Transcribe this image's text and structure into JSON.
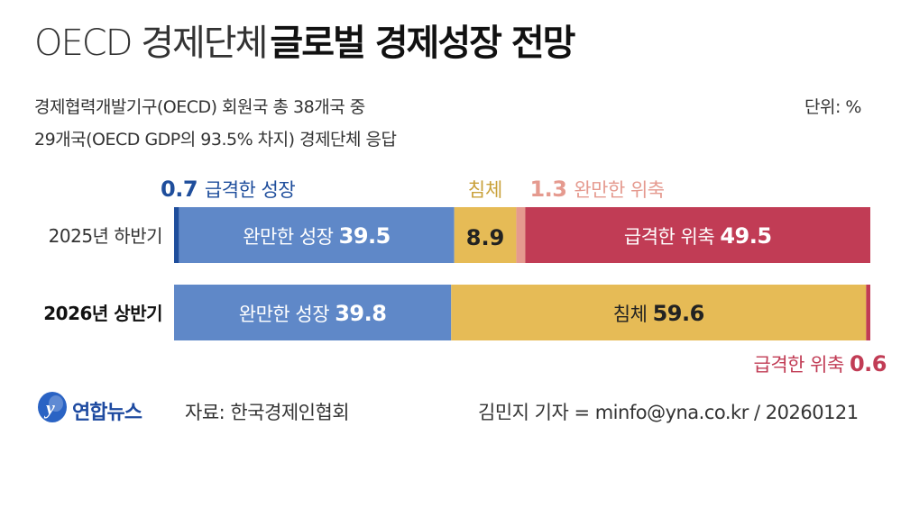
{
  "header": {
    "title_light": "OECD 경제단체",
    "title_bold": "글로벌 경제성장 전망",
    "subtitle_line1": "경제협력개발기구(OECD) 회원국 총 38개국 중",
    "subtitle_line2": "29개국(OECD GDP의 93.5% 차지) 경제단체 응답",
    "unit": "단위: %"
  },
  "colors": {
    "sharp_growth": "#1f4e9c",
    "mild_growth": "#5f88c8",
    "stagnation": "#e6bb56",
    "mild_contraction": "#e59a8f",
    "sharp_contraction": "#c13c55"
  },
  "chart_data": {
    "type": "bar",
    "orientation": "horizontal-stacked-100",
    "unit": "%",
    "categories": [
      "2025년 하반기",
      "2026년 상반기"
    ],
    "series": [
      {
        "name": "급격한 성장",
        "values": [
          0.7,
          0
        ],
        "color": "#1f4e9c"
      },
      {
        "name": "완만한 성장",
        "values": [
          39.5,
          39.8
        ],
        "color": "#5f88c8"
      },
      {
        "name": "침체",
        "values": [
          8.9,
          59.6
        ],
        "color": "#e6bb56"
      },
      {
        "name": "완만한 위축",
        "values": [
          1.3,
          0
        ],
        "color": "#e59a8f"
      },
      {
        "name": "급격한 위축",
        "values": [
          49.5,
          0.6
        ],
        "color": "#c13c55"
      }
    ]
  },
  "labels": {
    "row1_sharp_growth": "급격한 성장",
    "row1_stagnation": "침체",
    "row1_mild_contraction": "완만한 위축",
    "row2_sharp_contraction": "급격한 위축"
  },
  "footer": {
    "logo": "연합뉴스",
    "source": "자료: 한국경제인협회",
    "credit": "김민지 기자 = minfo@yna.co.kr / 20260121"
  }
}
